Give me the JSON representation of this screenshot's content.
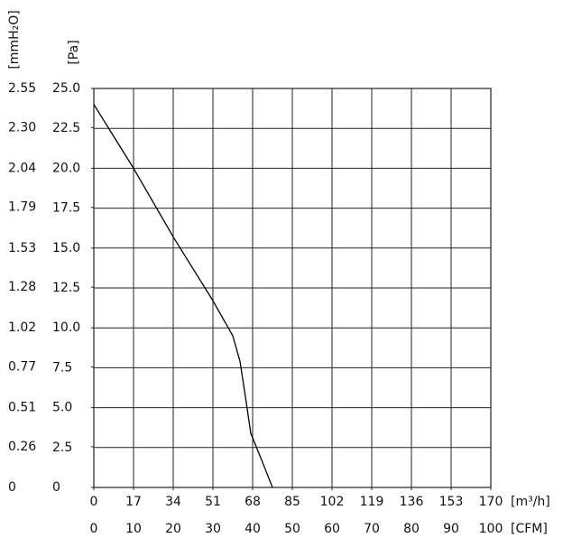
{
  "chart_data": {
    "type": "line",
    "x": [
      0,
      17,
      34,
      51,
      59.5,
      62.6,
      64.9,
      67.2,
      71.9,
      76.5
    ],
    "values": [
      24.0,
      20.0,
      15.7,
      11.7,
      9.5,
      7.9,
      5.7,
      3.4,
      1.7,
      0
    ],
    "color": "#000000",
    "xlim": [
      0,
      170
    ],
    "xticks": [
      0,
      17,
      34,
      51,
      68,
      85,
      102,
      119,
      136,
      153,
      170
    ],
    "x_label": "[m³/h]",
    "x2lim": [
      0,
      100
    ],
    "x2ticks": [
      0,
      10,
      20,
      30,
      40,
      50,
      60,
      70,
      80,
      90,
      100
    ],
    "x2_label": "[CFM]",
    "ylim": [
      0,
      25
    ],
    "yticks": [
      0,
      {
        "value": 2.5,
        "label": "2.5"
      },
      {
        "value": 5,
        "label": "5.0"
      },
      7.5,
      {
        "value": 10,
        "label": "10.0"
      },
      12.5,
      {
        "value": 15,
        "label": "15.0"
      },
      17.5,
      {
        "value": 20,
        "label": "20.0"
      },
      22.5,
      {
        "value": 25,
        "label": "25.0"
      }
    ],
    "y_label": "[Pa]",
    "y2lim": [
      0,
      2.55
    ],
    "y2ticks": [
      0,
      0.26,
      0.51,
      0.77,
      1.02,
      1.28,
      1.53,
      1.79,
      2.04,
      {
        "value": 2.3,
        "label": "2.30"
      },
      2.55
    ],
    "y2_label": "[mmH₂O]",
    "grid": true
  }
}
